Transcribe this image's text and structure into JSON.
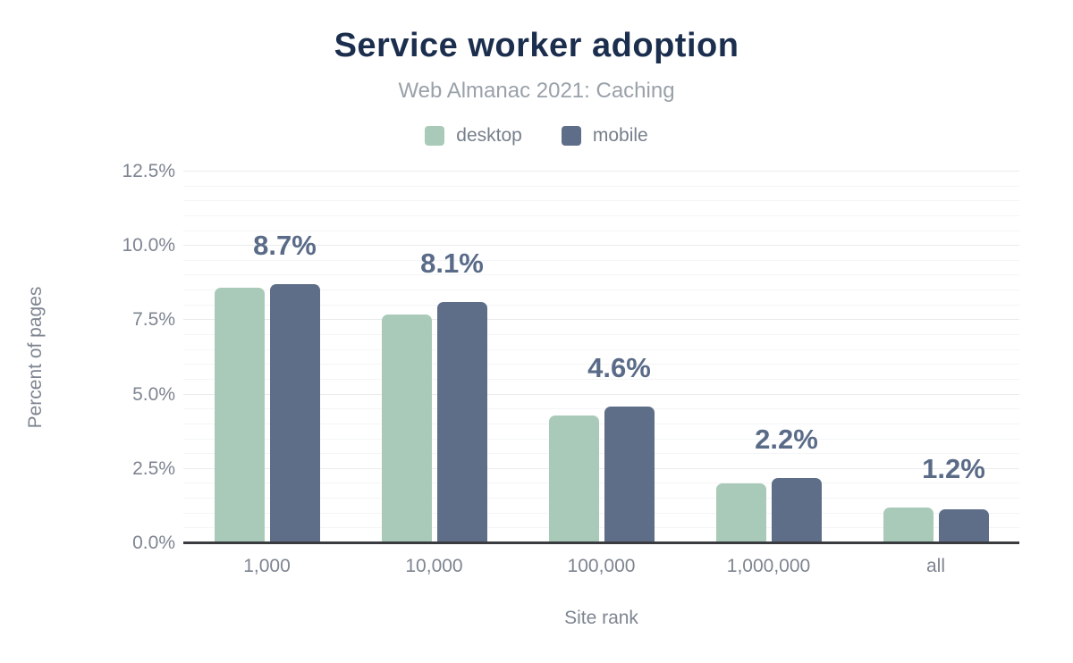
{
  "chart_data": {
    "type": "bar",
    "title": "Service worker adoption",
    "subtitle": "Web Almanac 2021: Caching",
    "categories": [
      "1,000",
      "10,000",
      "100,000",
      "1,000,000",
      "all"
    ],
    "series": [
      {
        "name": "desktop",
        "color": "#a9cab9",
        "values": [
          8.6,
          7.7,
          4.3,
          2.0,
          1.2
        ]
      },
      {
        "name": "mobile",
        "color": "#5f6e88",
        "values": [
          8.7,
          8.1,
          4.6,
          2.2,
          1.15
        ]
      }
    ],
    "bar_labels": [
      "8.7%",
      "8.1%",
      "4.6%",
      "2.2%",
      "1.2%"
    ],
    "xlabel": "Site rank",
    "ylabel": "Percent of pages",
    "ylim": [
      0,
      12.5
    ],
    "y_tick_labels": [
      "0.0%",
      "2.5%",
      "5.0%",
      "7.5%",
      "10.0%",
      "12.5%"
    ],
    "y_major_step": 2.5,
    "y_minor_step": 0.5,
    "legend_position": "top",
    "grid": true
  },
  "palette": {
    "title_color": "#1b2e4e",
    "subtitle_color": "#9aa1a9",
    "tick_color": "#7e8591",
    "bar_label_color": "#5a6b88",
    "axis_line_color": "#3a3b3f",
    "major_grid_color": "#e9ebed",
    "minor_grid_color": "#f4f5f7",
    "background": "#ffffff"
  }
}
